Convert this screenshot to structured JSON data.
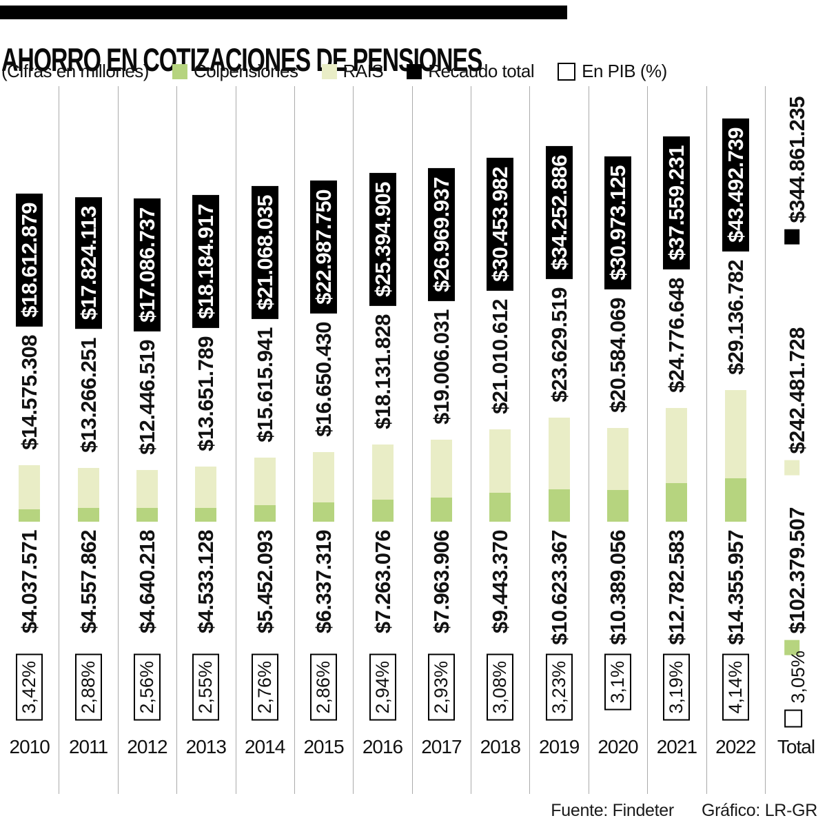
{
  "header": {
    "title": "AHORRO EN COTIZACIONES DE PENSIONES",
    "subtitle": "(Cifras en millones)"
  },
  "legend": {
    "items": [
      {
        "label": "Colpensiones",
        "color": "#b6d47f",
        "style": "filled"
      },
      {
        "label": "RAIS",
        "color": "#e9edc6",
        "style": "filled"
      },
      {
        "label": "Recaudo total",
        "color": "#000000",
        "style": "filled"
      },
      {
        "label": "En PIB (%)",
        "color": "#ffffff",
        "style": "outlined"
      }
    ]
  },
  "footer": {
    "source": "Fuente: Findeter",
    "credit": "Gráfico: LR-GR"
  },
  "chart_data": {
    "type": "bar",
    "stacked": true,
    "title": "AHORRO EN COTIZACIONES DE PENSIONES",
    "subtitle": "(Cifras en millones)",
    "grid": "vertical-column-separators",
    "legend_position": "top",
    "categories": [
      "2010",
      "2011",
      "2012",
      "2013",
      "2014",
      "2015",
      "2016",
      "2017",
      "2018",
      "2019",
      "2020",
      "2021",
      "2022",
      "Total"
    ],
    "series": [
      {
        "name": "Colpensiones",
        "color": "#b6d47f",
        "values": [
          4037571,
          4557862,
          4640218,
          4533128,
          5452093,
          6337319,
          7263076,
          7963906,
          9443370,
          10623367,
          10389056,
          12782583,
          14355957,
          102379507
        ],
        "labels": [
          "$4.037.571",
          "$4.557.862",
          "$4.640.218",
          "$4.533.128",
          "$5.452.093",
          "$6.337.319",
          "$7.263.076",
          "$7.963.906",
          "$9.443.370",
          "$10.623.367",
          "$10.389.056",
          "$12.782.583",
          "$14.355.957",
          "$102.379.507"
        ]
      },
      {
        "name": "RAIS",
        "color": "#e9edc6",
        "values": [
          14575308,
          13266251,
          12446519,
          13651789,
          15615941,
          16650430,
          18131828,
          19006031,
          21010612,
          23629519,
          20584069,
          24776648,
          29136782,
          242481728
        ],
        "labels": [
          "$14.575.308",
          "$13.266.251",
          "$12.446.519",
          "$13.651.789",
          "$15.615.941",
          "$16.650.430",
          "$18.131.828",
          "$19.006.031",
          "$21.010.612",
          "$23.629.519",
          "$20.584.069",
          "$24.776.648",
          "$29.136.782",
          "$242.481.728"
        ]
      },
      {
        "name": "Recaudo total",
        "color": "#000000",
        "values": [
          18612879,
          17824113,
          17086737,
          18184917,
          21068035,
          22987750,
          25394905,
          26969937,
          30453982,
          34252886,
          30973125,
          37559231,
          43492739,
          344861235
        ],
        "labels": [
          "$18.612.879",
          "$17.824.113",
          "$17.086.737",
          "$18.184.917",
          "$21.068.035",
          "$22.987.750",
          "$25.394.905",
          "$26.969.937",
          "$30.453.982",
          "$34.252.886",
          "$30.973.125",
          "$37.559.231",
          "$43.492.739",
          "$344.861.235"
        ]
      },
      {
        "name": "En PIB (%)",
        "color": "#ffffff",
        "values": [
          3.42,
          2.88,
          2.56,
          2.55,
          2.76,
          2.86,
          2.94,
          2.93,
          3.08,
          3.23,
          3.1,
          3.19,
          4.14,
          3.05
        ],
        "labels": [
          "3,42%",
          "2,88%",
          "2,56%",
          "2,55%",
          "2,76%",
          "2,86%",
          "2,94%",
          "2,93%",
          "3,08%",
          "3,23%",
          "3,1%",
          "3,19%",
          "4,14%",
          "3,05%"
        ]
      }
    ],
    "notes": "Last category (Total) is shown as labeled values with legend markers instead of a bar"
  }
}
